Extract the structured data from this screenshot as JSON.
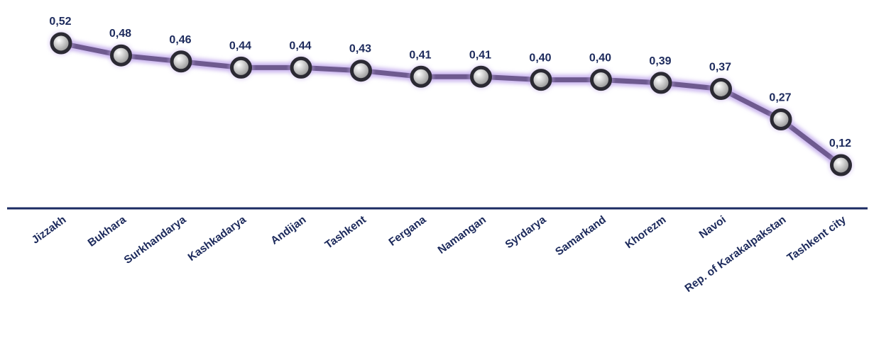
{
  "colors": {
    "text": "#1c2a5c",
    "axis": "#1b2b63",
    "line": "#6e5a8f",
    "glow": "#c9b4ee",
    "marker_outline": "#2b2a33",
    "marker_fill_light": "#ffffff",
    "marker_fill_dark": "#8a8a8a"
  },
  "chart_data": {
    "type": "line",
    "categories": [
      "Jizzakh",
      "Bukhara",
      "Surkhandarya",
      "Kashkadarya",
      "Andijan",
      "Tashkent",
      "Fergana",
      "Namangan",
      "Syrdarya",
      "Samarkand",
      "Khorezm",
      "Navoi",
      "Rep. of Karakalpakstan",
      "Tashkent city"
    ],
    "values": [
      0.52,
      0.48,
      0.46,
      0.44,
      0.44,
      0.43,
      0.41,
      0.41,
      0.4,
      0.4,
      0.39,
      0.37,
      0.27,
      0.12
    ],
    "data_labels": [
      "0,52",
      "0,48",
      "0,46",
      "0,44",
      "0,44",
      "0,43",
      "0,41",
      "0,41",
      "0,40",
      "0,40",
      "0,39",
      "0,37",
      "0,27",
      "0,12"
    ],
    "title": "",
    "xlabel": "",
    "ylabel": "",
    "ylim": [
      0.12,
      0.52
    ],
    "grid": false,
    "legend": "none"
  }
}
